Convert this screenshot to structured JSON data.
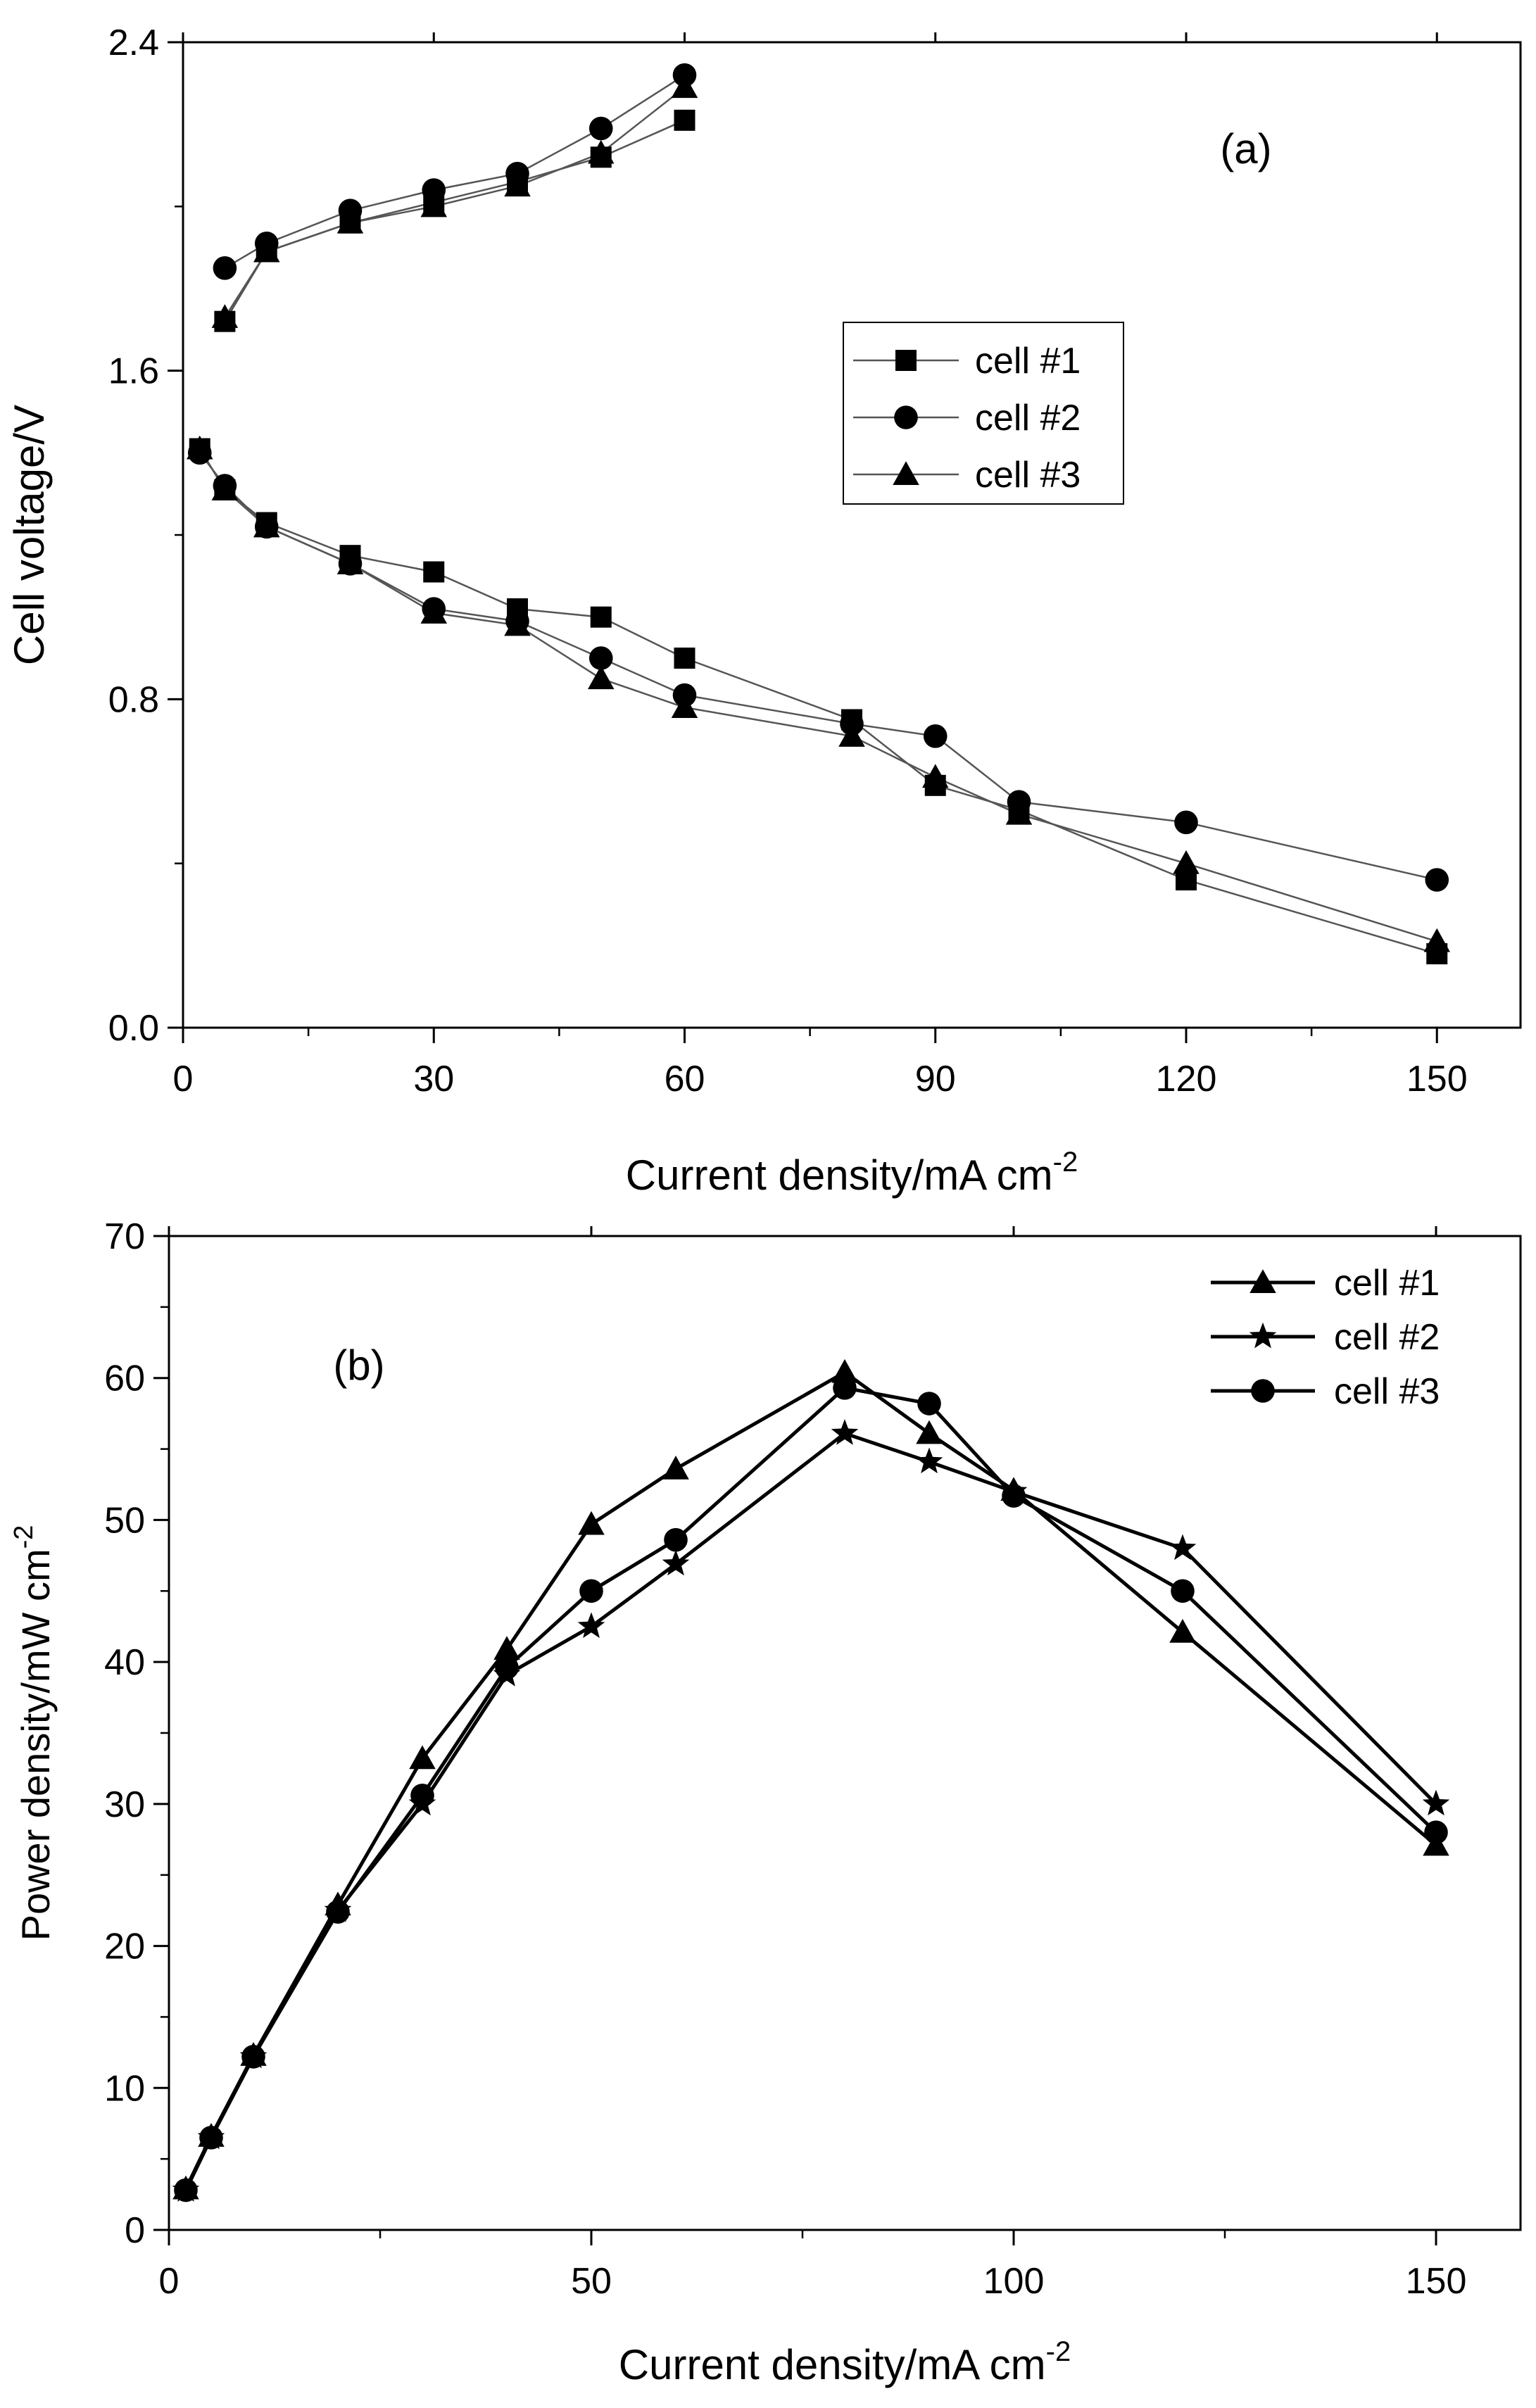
{
  "chart_data": [
    {
      "panel": "(a)",
      "type": "scatter-line",
      "title": "",
      "xlabel": "Current density/mA cm",
      "xlabel_sup": "-2",
      "ylabel": "Cell voltage/V",
      "xlim": [
        0,
        160
      ],
      "ylim": [
        0,
        2.4
      ],
      "xticks": [
        0,
        30,
        60,
        90,
        120,
        150
      ],
      "xtick_labels": [
        "0",
        "30",
        "60",
        "90",
        "120",
        "150"
      ],
      "yticks": [
        0,
        0.8,
        1.6,
        2.4
      ],
      "ytick_labels": [
        "0.0",
        "0.8",
        "1.6",
        "2.4"
      ],
      "legend_position": "right-center",
      "series": [
        {
          "name": "cell #1",
          "marker": "square",
          "charge": {
            "x": [
              5,
              10,
              20,
              30,
              40,
              50,
              60
            ],
            "y": [
              1.72,
              1.89,
              1.96,
              2.01,
              2.06,
              2.12,
              2.21
            ]
          },
          "discharge": {
            "x": [
              2,
              5,
              10,
              20,
              30,
              40,
              50,
              60,
              80,
              90,
              100,
              120,
              150
            ],
            "y": [
              1.41,
              1.31,
              1.23,
              1.15,
              1.11,
              1.02,
              1.0,
              0.9,
              0.75,
              0.59,
              0.53,
              0.36,
              0.18
            ]
          }
        },
        {
          "name": "cell #2",
          "marker": "circle",
          "charge": {
            "x": [
              5,
              10,
              20,
              30,
              40,
              50,
              60
            ],
            "y": [
              1.85,
              1.91,
              1.99,
              2.04,
              2.08,
              2.19,
              2.32
            ]
          },
          "discharge": {
            "x": [
              2,
              5,
              10,
              20,
              30,
              40,
              50,
              60,
              80,
              90,
              100,
              120,
              150
            ],
            "y": [
              1.4,
              1.32,
              1.22,
              1.13,
              1.02,
              0.99,
              0.9,
              0.81,
              0.74,
              0.71,
              0.55,
              0.5,
              0.36
            ]
          }
        },
        {
          "name": "cell #3",
          "marker": "triangle",
          "charge": {
            "x": [
              5,
              10,
              20,
              30,
              40,
              50,
              60
            ],
            "y": [
              1.73,
              1.89,
              1.96,
              2.0,
              2.05,
              2.13,
              2.29
            ]
          },
          "discharge": {
            "x": [
              2,
              5,
              10,
              20,
              30,
              40,
              50,
              60,
              80,
              90,
              100,
              120,
              150
            ],
            "y": [
              1.41,
              1.31,
              1.22,
              1.13,
              1.01,
              0.98,
              0.85,
              0.78,
              0.71,
              0.61,
              0.52,
              0.4,
              0.21
            ]
          }
        }
      ]
    },
    {
      "panel": "(b)",
      "type": "line",
      "title": "",
      "xlabel": "Current density/mA cm",
      "xlabel_sup": "-2",
      "ylabel": "Power density/mW cm",
      "ylabel_sup": "-2",
      "xlim": [
        0,
        160
      ],
      "ylim": [
        0,
        70
      ],
      "xticks": [
        0,
        50,
        100,
        150
      ],
      "xtick_labels": [
        "0",
        "50",
        "100",
        "150"
      ],
      "yticks": [
        0,
        10,
        20,
        30,
        40,
        50,
        60,
        70
      ],
      "ytick_labels": [
        "0",
        "10",
        "20",
        "30",
        "40",
        "50",
        "60",
        "70"
      ],
      "legend_position": "top-right",
      "series": [
        {
          "name": "cell #1",
          "marker": "triangle",
          "x": [
            2,
            5,
            10,
            20,
            30,
            40,
            50,
            60,
            80,
            90,
            100,
            120,
            150
          ],
          "y": [
            2.9,
            6.6,
            12.3,
            22.9,
            33.2,
            40.9,
            49.7,
            53.6,
            60.4,
            56.1,
            52.1,
            42.1,
            27.1
          ]
        },
        {
          "name": "cell #2",
          "marker": "star",
          "x": [
            2,
            5,
            10,
            20,
            30,
            40,
            50,
            60,
            80,
            90,
            100,
            120,
            150
          ],
          "y": [
            2.8,
            6.5,
            12.2,
            22.5,
            30.0,
            39.1,
            42.5,
            46.9,
            56.1,
            54.1,
            52.0,
            48.0,
            30.0
          ]
        },
        {
          "name": "cell #3",
          "marker": "circle",
          "x": [
            2,
            5,
            10,
            20,
            30,
            40,
            50,
            60,
            80,
            90,
            100,
            120,
            150
          ],
          "y": [
            2.8,
            6.5,
            12.2,
            22.4,
            30.6,
            39.6,
            45.0,
            48.6,
            59.3,
            58.2,
            51.7,
            45.0,
            28.0
          ]
        }
      ]
    }
  ]
}
